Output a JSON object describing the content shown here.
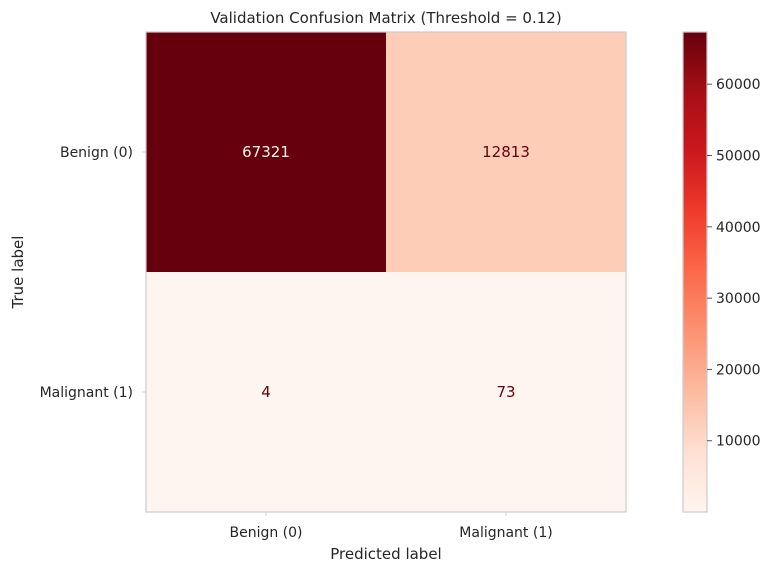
{
  "chart_data": {
    "type": "heatmap",
    "title": "Validation Confusion Matrix (Threshold = 0.12)",
    "xlabel": "Predicted label",
    "ylabel": "True label",
    "x_categories": [
      "Benign (0)",
      "Malignant (1)"
    ],
    "y_categories": [
      "Benign (0)",
      "Malignant (1)"
    ],
    "matrix": [
      [
        67321,
        12813
      ],
      [
        4,
        73
      ]
    ],
    "cell_labels": [
      [
        "67321",
        "12813"
      ],
      [
        "4",
        "73"
      ]
    ],
    "colormap": "Reds",
    "colorbar": {
      "range": [
        4,
        67321
      ],
      "ticks": [
        10000,
        20000,
        30000,
        40000,
        50000,
        60000
      ],
      "tick_labels": [
        "10000",
        "20000",
        "30000",
        "40000",
        "50000",
        "60000"
      ]
    },
    "grid": false
  }
}
